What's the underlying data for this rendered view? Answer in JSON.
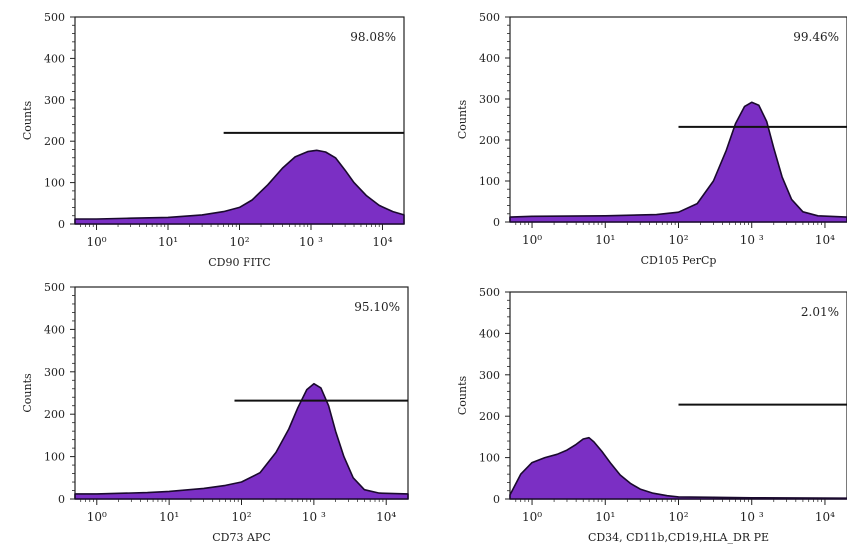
{
  "chart_data": [
    {
      "type": "area",
      "title": "",
      "xlabel": "CD90 FITC",
      "ylabel": "Counts",
      "x_scale": "log",
      "xlim": [
        0.5,
        20000
      ],
      "ylim": [
        0,
        500
      ],
      "y_ticks": [
        0,
        100,
        200,
        300,
        400,
        500
      ],
      "x_tick_labels": [
        "10⁰",
        "10¹",
        "10²",
        "10 ³",
        "10⁴"
      ],
      "annotation": "98.08%",
      "gate": {
        "x_start": 60,
        "x_end": 20000,
        "y": 220
      },
      "fill_color": "#7b2fc4",
      "x": [
        0.5,
        1,
        3,
        10,
        30,
        60,
        100,
        150,
        250,
        400,
        600,
        900,
        1200,
        1600,
        2200,
        3000,
        4000,
        6000,
        9000,
        14000,
        20000
      ],
      "y": [
        12,
        12,
        14,
        16,
        22,
        30,
        40,
        58,
        95,
        135,
        162,
        175,
        178,
        174,
        160,
        130,
        100,
        68,
        45,
        30,
        22
      ]
    },
    {
      "type": "area",
      "title": "",
      "xlabel": "CD105 PerCp",
      "ylabel": "Counts",
      "x_scale": "log",
      "xlim": [
        0.5,
        20000
      ],
      "ylim": [
        0,
        500
      ],
      "y_ticks": [
        0,
        100,
        200,
        300,
        400,
        500
      ],
      "x_tick_labels": [
        "10⁰",
        "10¹",
        "10²",
        "10 ³",
        "10⁴"
      ],
      "annotation": "99.46%",
      "gate": {
        "x_start": 100,
        "x_end": 20000,
        "y": 232
      },
      "fill_color": "#7b2fc4",
      "x": [
        0.5,
        1,
        10,
        50,
        100,
        180,
        300,
        450,
        600,
        800,
        1000,
        1250,
        1600,
        2000,
        2600,
        3500,
        5000,
        8000,
        20000
      ],
      "y": [
        12,
        14,
        15,
        18,
        24,
        45,
        100,
        175,
        240,
        282,
        292,
        285,
        245,
        180,
        110,
        55,
        25,
        15,
        12
      ]
    },
    {
      "type": "area",
      "title": "",
      "xlabel": "CD73 APC",
      "ylabel": "Counts",
      "x_scale": "log",
      "xlim": [
        0.5,
        20000
      ],
      "ylim": [
        0,
        500
      ],
      "y_ticks": [
        0,
        100,
        200,
        300,
        400,
        500
      ],
      "x_tick_labels": [
        "10⁰",
        "10¹",
        "10²",
        "10 ³",
        "10⁴"
      ],
      "annotation": "95.10%",
      "gate": {
        "x_start": 80,
        "x_end": 20000,
        "y": 232
      },
      "fill_color": "#7b2fc4",
      "x": [
        0.5,
        1,
        5,
        10,
        30,
        60,
        100,
        180,
        300,
        450,
        600,
        800,
        1000,
        1250,
        1600,
        2000,
        2600,
        3500,
        5000,
        8000,
        20000
      ],
      "y": [
        12,
        12,
        15,
        18,
        25,
        32,
        40,
        62,
        110,
        165,
        215,
        258,
        272,
        262,
        220,
        160,
        100,
        50,
        22,
        14,
        12
      ]
    },
    {
      "type": "area",
      "title": "",
      "xlabel": "CD34, CD11b,CD19,HLA_DR PE",
      "ylabel": "Counts",
      "x_scale": "log",
      "xlim": [
        0.5,
        20000
      ],
      "ylim": [
        0,
        500
      ],
      "y_ticks": [
        0,
        100,
        200,
        300,
        400,
        500
      ],
      "x_tick_labels": [
        "10⁰",
        "10¹",
        "10²",
        "10 ³",
        "10⁴"
      ],
      "annotation": "2.01%",
      "gate": {
        "x_start": 100,
        "x_end": 20000,
        "y": 228
      },
      "fill_color": "#7b2fc4",
      "x": [
        0.5,
        0.7,
        1,
        1.5,
        2.2,
        3,
        4,
        5,
        6,
        7,
        9,
        12,
        16,
        22,
        30,
        45,
        70,
        100,
        300,
        1000,
        20000
      ],
      "y": [
        10,
        60,
        88,
        100,
        108,
        118,
        132,
        145,
        148,
        138,
        115,
        85,
        58,
        38,
        24,
        14,
        8,
        5,
        4,
        3,
        2
      ]
    }
  ]
}
